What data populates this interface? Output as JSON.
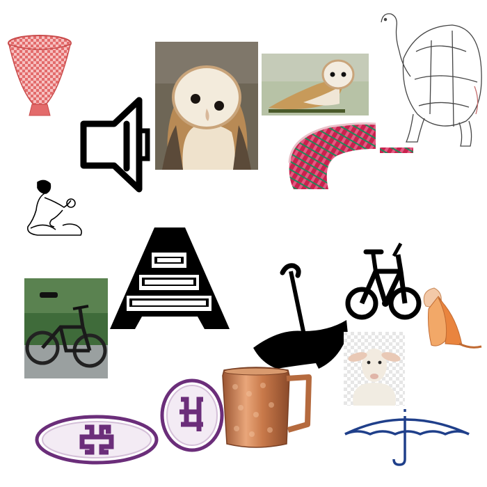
{
  "canvas": {
    "background": "#ffffff"
  },
  "items": [
    {
      "name": "red-basket-icon",
      "kind": "clipart",
      "color": "#e06a6a"
    },
    {
      "name": "speaker-outline-icon",
      "kind": "icon",
      "color": "#000000"
    },
    {
      "name": "barn-owl-closeup-photo",
      "kind": "photo"
    },
    {
      "name": "barn-owl-perched-photo",
      "kind": "photo"
    },
    {
      "name": "tortoise-sketch",
      "kind": "line-drawing"
    },
    {
      "name": "woven-mat-photo",
      "kind": "photo"
    },
    {
      "name": "mother-child-sketch",
      "kind": "line-drawing"
    },
    {
      "name": "ladder-a-icon",
      "kind": "icon",
      "color": "#000000"
    },
    {
      "name": "bicycle-photo",
      "kind": "photo"
    },
    {
      "name": "inverted-umbrella-silhouette",
      "kind": "icon",
      "color": "#000000"
    },
    {
      "name": "bicycle-icon",
      "kind": "icon",
      "color": "#000000"
    },
    {
      "name": "seashell-photo",
      "kind": "photo",
      "color": "#e89a5a"
    },
    {
      "name": "lamb-photo",
      "kind": "photo"
    },
    {
      "name": "swastika-oval-badge",
      "kind": "symbol",
      "color": "#6b2e7a"
    },
    {
      "name": "swastika-round-badge",
      "kind": "symbol",
      "color": "#6b2e7a"
    },
    {
      "name": "copper-mug-photo",
      "kind": "photo",
      "color": "#c8794a"
    },
    {
      "name": "blue-umbrella-outline",
      "kind": "icon",
      "color": "#1f3f8a"
    }
  ]
}
